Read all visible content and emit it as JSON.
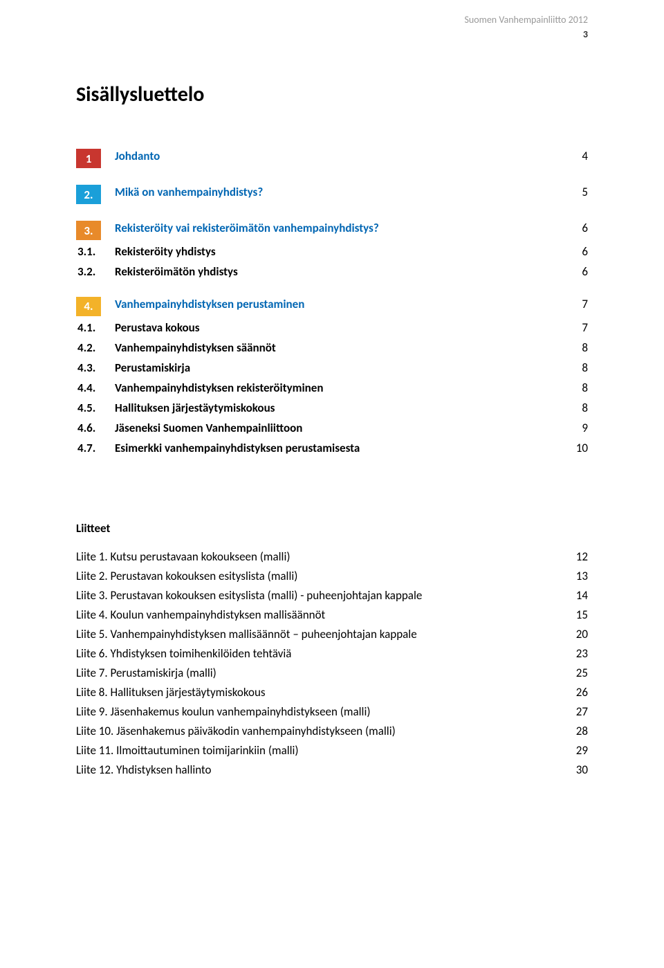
{
  "header": {
    "line": "Suomen Vanhempainliitto 2012",
    "page_num": "3",
    "header_color": "#999999"
  },
  "title": "Sisällysluettelo",
  "section_colors": {
    "s1": "#c8362f",
    "s2": "#1a9fd9",
    "s3": "#e88a2a",
    "s4": "#f3b229",
    "link_blue": "#0066b3"
  },
  "sections": [
    {
      "num": "1",
      "color_key": "s1",
      "title": "Johdanto",
      "page": "4",
      "subs": []
    },
    {
      "num": "2.",
      "color_key": "s2",
      "title": "Mikä on vanhempainyhdistys?",
      "page": "5",
      "subs": []
    },
    {
      "num": "3.",
      "color_key": "s3",
      "title": "Rekisteröity vai rekisteröimätön vanhempainyhdistys?",
      "page": "6",
      "subs": [
        {
          "num": "3.1.",
          "label": "Rekisteröity yhdistys",
          "page": "6"
        },
        {
          "num": "3.2.",
          "label": "Rekisteröimätön yhdistys",
          "page": "6"
        }
      ]
    },
    {
      "num": "4.",
      "color_key": "s4",
      "title": "Vanhempainyhdistyksen perustaminen",
      "page": "7",
      "subs": [
        {
          "num": "4.1.",
          "label": "Perustava kokous",
          "page": "7"
        },
        {
          "num": "4.2.",
          "label": "Vanhempainyhdistyksen säännöt",
          "page": "8"
        },
        {
          "num": "4.3.",
          "label": "Perustamiskirja",
          "page": "8"
        },
        {
          "num": "4.4.",
          "label": "Vanhempainyhdistyksen rekisteröityminen",
          "page": "8"
        },
        {
          "num": "4.5.",
          "label": "Hallituksen järjestäytymiskokous",
          "page": "8"
        },
        {
          "num": "4.6.",
          "label": "Jäseneksi Suomen Vanhempainliittoon",
          "page": "9"
        },
        {
          "num": "4.7.",
          "label": "Esimerkki vanhempainyhdistyksen perustamisesta",
          "page": "10"
        }
      ]
    }
  ],
  "liitteet_title": "Liitteet",
  "liitteet": [
    {
      "label": "Liite 1.  Kutsu perustavaan kokoukseen (malli)",
      "page": "12"
    },
    {
      "label": "Liite 2.  Perustavan kokouksen esityslista (malli)",
      "page": "13"
    },
    {
      "label": "Liite 3.  Perustavan kokouksen esityslista (malli) - puheenjohtajan kappale",
      "page": "14"
    },
    {
      "label": "Liite 4.  Koulun vanhempainyhdistyksen mallisäännöt",
      "page": "15"
    },
    {
      "label": "Liite 5.  Vanhempainyhdistyksen mallisäännöt – puheenjohtajan kappale",
      "page": "20"
    },
    {
      "label": "Liite 6.  Yhdistyksen toimihenkilöiden tehtäviä",
      "page": "23"
    },
    {
      "label": "Liite 7.  Perustamiskirja (malli)",
      "page": "25"
    },
    {
      "label": "Liite 8.  Hallituksen järjestäytymiskokous",
      "page": "26"
    },
    {
      "label": "Liite 9.  Jäsenhakemus koulun vanhempainyhdistykseen (malli)",
      "page": "27"
    },
    {
      "label": "Liite 10. Jäsenhakemus päiväkodin vanhempainyhdistykseen (malli)",
      "page": "28"
    },
    {
      "label": "Liite 11. Ilmoittautuminen toimijarinkiin (malli)",
      "page": "29"
    },
    {
      "label": "Liite 12. Yhdistyksen hallinto",
      "page": "30"
    }
  ]
}
